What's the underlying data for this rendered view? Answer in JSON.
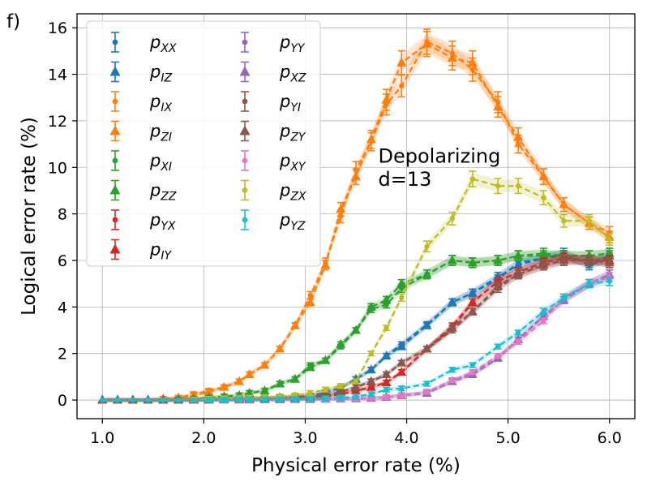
{
  "chart_data": {
    "type": "line",
    "panel_label": "f)",
    "title": "",
    "xlabel": "Physical error rate (%)",
    "ylabel": "Logical error rate (%)",
    "xlim": [
      0.75,
      6.25
    ],
    "ylim": [
      -0.8,
      16.6
    ],
    "xticks": [
      1.0,
      2.0,
      3.0,
      4.0,
      5.0,
      6.0
    ],
    "xtick_labels": [
      "1.0",
      "2.0",
      "3.0",
      "4.0",
      "5.0",
      "6.0"
    ],
    "yticks": [
      0,
      2,
      4,
      6,
      8,
      10,
      12,
      14,
      16
    ],
    "ytick_labels": [
      "0",
      "2",
      "4",
      "6",
      "8",
      "10",
      "12",
      "14",
      "16"
    ],
    "grid": true,
    "legend_position": "top-left",
    "annotation": [
      "Depolarizing",
      "d=13"
    ],
    "x": [
      1.0,
      1.15,
      1.3,
      1.45,
      1.6,
      1.75,
      1.9,
      2.05,
      2.2,
      2.35,
      2.45,
      2.6,
      2.75,
      2.9,
      3.05,
      3.2,
      3.35,
      3.5,
      3.65,
      3.8,
      3.95,
      4.2,
      4.45,
      4.65,
      4.9,
      5.1,
      5.35,
      5.55,
      5.8,
      6.0
    ],
    "series": [
      {
        "name": "XX",
        "color": "#1f77b4",
        "marker": "circle",
        "values": [
          0,
          0,
          0,
          0,
          0,
          0,
          0.02,
          0.04,
          0.05,
          0.06,
          0.08,
          0.09,
          0.11,
          0.14,
          0.18,
          0.32,
          0.52,
          0.9,
          1.3,
          1.9,
          2.4,
          3.25,
          4.2,
          4.6,
          5.2,
          5.9,
          6.1,
          6.3,
          5.8,
          6.1
        ]
      },
      {
        "name": "IZ",
        "color": "#1f77b4",
        "marker": "triangle",
        "values": [
          0,
          0,
          0,
          0,
          0,
          0,
          0.02,
          0.04,
          0.05,
          0.06,
          0.08,
          0.09,
          0.11,
          0.14,
          0.18,
          0.32,
          0.52,
          0.9,
          1.3,
          1.9,
          2.3,
          3.2,
          4.2,
          4.6,
          5.3,
          5.8,
          6.1,
          6.2,
          5.9,
          6.2
        ]
      },
      {
        "name": "IX",
        "color": "#ff7f0e",
        "marker": "circle",
        "values": [
          0,
          0,
          0,
          0,
          0.05,
          0.1,
          0.25,
          0.4,
          0.55,
          0.8,
          1.1,
          1.5,
          2.2,
          3.2,
          4.5,
          5.9,
          7.9,
          9.9,
          11.1,
          12.7,
          13.5,
          15.4,
          14.9,
          14.2,
          12.8,
          11.0,
          9.6,
          8.4,
          7.6,
          7.2
        ]
      },
      {
        "name": "ZI",
        "color": "#ff7f0e",
        "marker": "triangle",
        "values": [
          0,
          0,
          0,
          0,
          0.05,
          0.1,
          0.2,
          0.35,
          0.55,
          0.8,
          1.1,
          1.5,
          2.2,
          3.2,
          4.2,
          5.8,
          8.2,
          9.6,
          11.2,
          12.9,
          14.5,
          15.3,
          14.7,
          14.5,
          12.6,
          11.3,
          9.6,
          8.4,
          7.6,
          7.0
        ]
      },
      {
        "name": "XI",
        "color": "#2ca02c",
        "marker": "circle",
        "values": [
          0,
          0,
          0,
          0,
          0,
          0.02,
          0.05,
          0.1,
          0.15,
          0.2,
          0.3,
          0.4,
          0.7,
          0.9,
          1.5,
          1.7,
          2.3,
          3.0,
          3.9,
          4.1,
          4.8,
          5.4,
          6.0,
          5.9,
          6.0,
          6.2,
          6.3,
          6.2,
          6.2,
          6.3
        ]
      },
      {
        "name": "ZZ",
        "color": "#2ca02c",
        "marker": "triangle",
        "values": [
          0,
          0,
          0,
          0,
          0,
          0.02,
          0.05,
          0.1,
          0.15,
          0.2,
          0.3,
          0.4,
          0.7,
          0.9,
          1.4,
          1.7,
          2.4,
          3.0,
          4.0,
          4.3,
          5.0,
          5.4,
          6.0,
          5.9,
          6.0,
          6.2,
          6.2,
          6.2,
          6.2,
          6.3
        ]
      },
      {
        "name": "YX",
        "color": "#d62728",
        "marker": "circle",
        "values": [
          0,
          0,
          0,
          0,
          0,
          0,
          0,
          0.01,
          0.02,
          0.02,
          0.03,
          0.03,
          0.05,
          0.07,
          0.1,
          0.15,
          0.25,
          0.4,
          0.55,
          0.75,
          1.2,
          2.2,
          3.2,
          4.2,
          5.1,
          5.5,
          5.9,
          6.1,
          6.0,
          6.0
        ]
      },
      {
        "name": "IY",
        "color": "#d62728",
        "marker": "triangle",
        "values": [
          0,
          0,
          0,
          0,
          0,
          0,
          0,
          0.01,
          0.02,
          0.02,
          0.03,
          0.03,
          0.05,
          0.07,
          0.1,
          0.15,
          0.25,
          0.4,
          0.55,
          0.75,
          1.2,
          2.2,
          3.1,
          4.2,
          5.1,
          5.5,
          5.9,
          6.1,
          6.0,
          6.0
        ]
      },
      {
        "name": "YY",
        "color": "#9467bd",
        "marker": "circle",
        "values": [
          0,
          0,
          0,
          0,
          0,
          0,
          0,
          0,
          0.01,
          0.01,
          0.01,
          0.02,
          0.02,
          0.03,
          0.03,
          0.04,
          0.05,
          0.06,
          0.08,
          0.12,
          0.2,
          0.3,
          0.8,
          1.1,
          1.8,
          2.6,
          3.6,
          4.3,
          5.0,
          5.4
        ]
      },
      {
        "name": "XZ",
        "color": "#9467bd",
        "marker": "triangle",
        "values": [
          0,
          0,
          0,
          0,
          0,
          0,
          0,
          0,
          0.01,
          0.01,
          0.01,
          0.02,
          0.02,
          0.03,
          0.03,
          0.04,
          0.05,
          0.06,
          0.08,
          0.12,
          0.2,
          0.3,
          0.8,
          1.1,
          1.8,
          2.6,
          3.6,
          4.3,
          5.0,
          5.4
        ]
      },
      {
        "name": "YI",
        "color": "#8c564b",
        "marker": "circle",
        "values": [
          0,
          0,
          0,
          0,
          0,
          0,
          0.02,
          0.03,
          0.04,
          0.05,
          0.06,
          0.07,
          0.08,
          0.1,
          0.13,
          0.2,
          0.35,
          0.55,
          0.8,
          1.1,
          1.6,
          2.2,
          3.0,
          3.8,
          4.8,
          5.4,
          5.8,
          6.0,
          6.0,
          5.9
        ]
      },
      {
        "name": "ZY",
        "color": "#8c564b",
        "marker": "triangle",
        "values": [
          0,
          0,
          0,
          0,
          0,
          0,
          0.02,
          0.03,
          0.04,
          0.05,
          0.06,
          0.07,
          0.08,
          0.1,
          0.13,
          0.2,
          0.35,
          0.55,
          0.8,
          1.1,
          1.6,
          2.2,
          3.1,
          3.8,
          4.9,
          5.4,
          5.8,
          6.0,
          6.0,
          5.9
        ]
      },
      {
        "name": "XY",
        "color": "#e377c2",
        "marker": "circle",
        "values": [
          0,
          0,
          0,
          0,
          0,
          0,
          0,
          0,
          0.01,
          0.01,
          0.01,
          0.02,
          0.02,
          0.03,
          0.03,
          0.04,
          0.05,
          0.06,
          0.08,
          0.12,
          0.2,
          0.35,
          0.85,
          1.2,
          1.9,
          2.5,
          3.4,
          4.4,
          5.0,
          5.3
        ]
      },
      {
        "name": "ZX",
        "color": "#bcbd22",
        "marker": "circle",
        "values": [
          0,
          0,
          0,
          0,
          0,
          0,
          0.02,
          0.05,
          0.07,
          0.08,
          0.1,
          0.12,
          0.15,
          0.2,
          0.3,
          0.45,
          0.6,
          0.8,
          2.0,
          3.1,
          4.4,
          6.6,
          7.8,
          9.5,
          9.2,
          9.2,
          8.7,
          7.7,
          7.7,
          6.9
        ]
      },
      {
        "name": "YZ",
        "color": "#17becf",
        "marker": "circle",
        "values": [
          0,
          0,
          0,
          0,
          0,
          0,
          0,
          0.01,
          0.01,
          0.02,
          0.02,
          0.02,
          0.03,
          0.04,
          0.05,
          0.07,
          0.1,
          0.15,
          0.25,
          0.45,
          0.5,
          0.7,
          1.3,
          1.5,
          2.3,
          2.9,
          3.8,
          4.4,
          5.0,
          5.1
        ]
      }
    ]
  }
}
